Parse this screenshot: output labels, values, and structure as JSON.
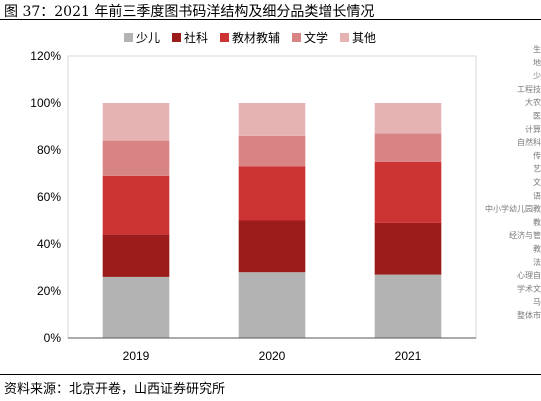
{
  "figure_title": "图 37：2021 年前三季度图书码洋结构及细分品类增长情况",
  "source": "资料来源：北京开卷，山西证券研究所",
  "colors": {
    "少儿": "#b3b3b3",
    "社科": "#9c1c1c",
    "教材教辅": "#cc3333",
    "文学": "#d98484",
    "其他": "#e6b3b3"
  },
  "side_labels": [
    "生",
    "地",
    "少",
    "工程技",
    "大农",
    "医",
    "计算",
    "自然科",
    "传",
    "艺",
    "文",
    "语",
    "中小学幼儿园教",
    "教",
    "经济与管",
    "教",
    "法",
    "心理自",
    "学术文",
    "马",
    "整体市"
  ],
  "chart_data": {
    "type": "bar",
    "stacked": true,
    "categories": [
      "2019",
      "2020",
      "2021"
    ],
    "series": [
      {
        "name": "少儿",
        "values": [
          26,
          28,
          27
        ]
      },
      {
        "name": "社科",
        "values": [
          18,
          22,
          22
        ]
      },
      {
        "name": "教材教辅",
        "values": [
          25,
          23,
          26
        ]
      },
      {
        "name": "文学",
        "values": [
          15,
          13,
          12
        ]
      },
      {
        "name": "其他",
        "values": [
          16,
          14,
          13
        ]
      }
    ],
    "yticks": [
      "0%",
      "20%",
      "40%",
      "60%",
      "80%",
      "100%",
      "120%"
    ],
    "ylim": [
      0,
      120
    ],
    "legend_position": "top"
  }
}
